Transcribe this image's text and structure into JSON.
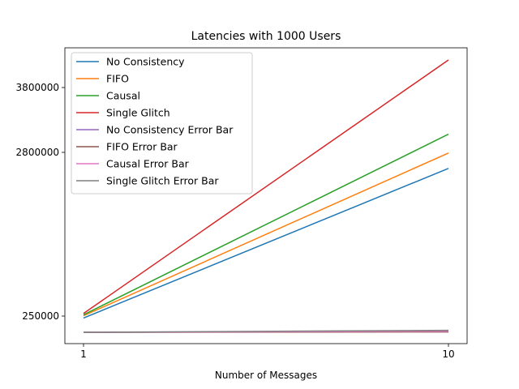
{
  "chart_data": {
    "type": "line",
    "title": "Latencies with 1000 Users",
    "xlabel": "Number of Messages",
    "ylabel": "",
    "x": [
      1,
      10
    ],
    "xticks": [
      "1",
      "10"
    ],
    "yticks": [
      250000,
      2800000,
      3800000
    ],
    "ytick_labels": [
      "250000",
      "2800000",
      "3800000"
    ],
    "xlim": [
      0.95,
      10.45
    ],
    "ylim": [
      0,
      4400000
    ],
    "grid": false,
    "legend_position": "top-left",
    "series": [
      {
        "name": "No Consistency",
        "color": "#1f77b4",
        "values": [
          220000,
          2550000
        ]
      },
      {
        "name": "FIFO",
        "color": "#ff7f0e",
        "values": [
          255000,
          2790000
        ]
      },
      {
        "name": "Causal",
        "color": "#2ca02c",
        "values": [
          270000,
          3080000
        ]
      },
      {
        "name": "Single Glitch",
        "color": "#d62728",
        "values": [
          290000,
          4150000
        ]
      },
      {
        "name": "No Consistency Error Bar",
        "color": "#9467bd",
        "values": [
          0,
          10000
        ]
      },
      {
        "name": "FIFO Error Bar",
        "color": "#8c564b",
        "values": [
          0,
          5000
        ]
      },
      {
        "name": "Causal Error Bar",
        "color": "#e377c2",
        "values": [
          0,
          15000
        ]
      },
      {
        "name": "Single Glitch Error Bar",
        "color": "#7f7f7f",
        "values": [
          0,
          30000
        ]
      }
    ]
  }
}
